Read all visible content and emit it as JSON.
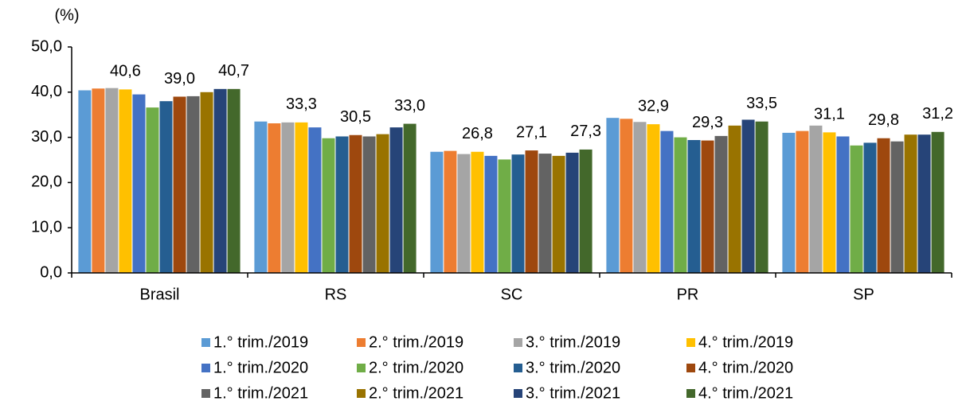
{
  "chart_data": {
    "type": "bar",
    "ylabel": "(%)",
    "categories": [
      "Brasil",
      "RS",
      "SC",
      "PR",
      "SP"
    ],
    "ylim": [
      0,
      50
    ],
    "yticks": [
      {
        "value": 0,
        "label": "0,0"
      },
      {
        "value": 10,
        "label": "10,0"
      },
      {
        "value": 20,
        "label": "20,0"
      },
      {
        "value": 30,
        "label": "30,0"
      },
      {
        "value": 40,
        "label": "40,0"
      },
      {
        "value": 50,
        "label": "50,0"
      }
    ],
    "legend": "bottom",
    "series": [
      {
        "name": "1.° trim./2019",
        "color": "#5b9bd5",
        "values": [
          40.4,
          33.5,
          26.8,
          34.3,
          31.0
        ]
      },
      {
        "name": "2.° trim./2019",
        "color": "#ed7d31",
        "values": [
          40.8,
          33.1,
          27.0,
          34.1,
          31.4
        ]
      },
      {
        "name": "3.° trim./2019",
        "color": "#a5a5a5",
        "values": [
          40.9,
          33.3,
          26.3,
          33.4,
          32.6
        ]
      },
      {
        "name": "4.° trim./2019",
        "color": "#ffc000",
        "values": [
          40.6,
          33.3,
          26.8,
          32.9,
          31.1
        ],
        "value_labels": [
          "40,6",
          "33,3",
          "26,8",
          "32,9",
          "31,1"
        ]
      },
      {
        "name": "1.° trim./2020",
        "color": "#4472c4",
        "values": [
          39.5,
          32.2,
          25.9,
          31.4,
          30.2
        ]
      },
      {
        "name": "2.° trim./2020",
        "color": "#70ad47",
        "values": [
          36.6,
          29.8,
          25.1,
          30.0,
          28.2
        ]
      },
      {
        "name": "3.° trim./2020",
        "color": "#255e91",
        "values": [
          38.0,
          30.2,
          26.2,
          29.4,
          28.8
        ]
      },
      {
        "name": "4.° trim./2020",
        "color": "#9e480e",
        "values": [
          39.0,
          30.5,
          27.1,
          29.3,
          29.8
        ],
        "value_labels": [
          "39,0",
          "30,5",
          "27,1",
          "29,3",
          "29,8"
        ]
      },
      {
        "name": "1.° trim./2021",
        "color": "#636363",
        "values": [
          39.1,
          30.2,
          26.4,
          30.3,
          29.1
        ]
      },
      {
        "name": "2.° trim./2021",
        "color": "#997300",
        "values": [
          40.0,
          30.7,
          25.9,
          32.6,
          30.6
        ]
      },
      {
        "name": "3.° trim./2021",
        "color": "#264478",
        "values": [
          40.7,
          32.2,
          26.6,
          33.9,
          30.6
        ]
      },
      {
        "name": "4.° trim./2021",
        "color": "#43682b",
        "values": [
          40.7,
          33.0,
          27.3,
          33.5,
          31.2
        ],
        "value_labels": [
          "40,7",
          "33,0",
          "27,3",
          "33,5",
          "31,2"
        ]
      }
    ]
  }
}
